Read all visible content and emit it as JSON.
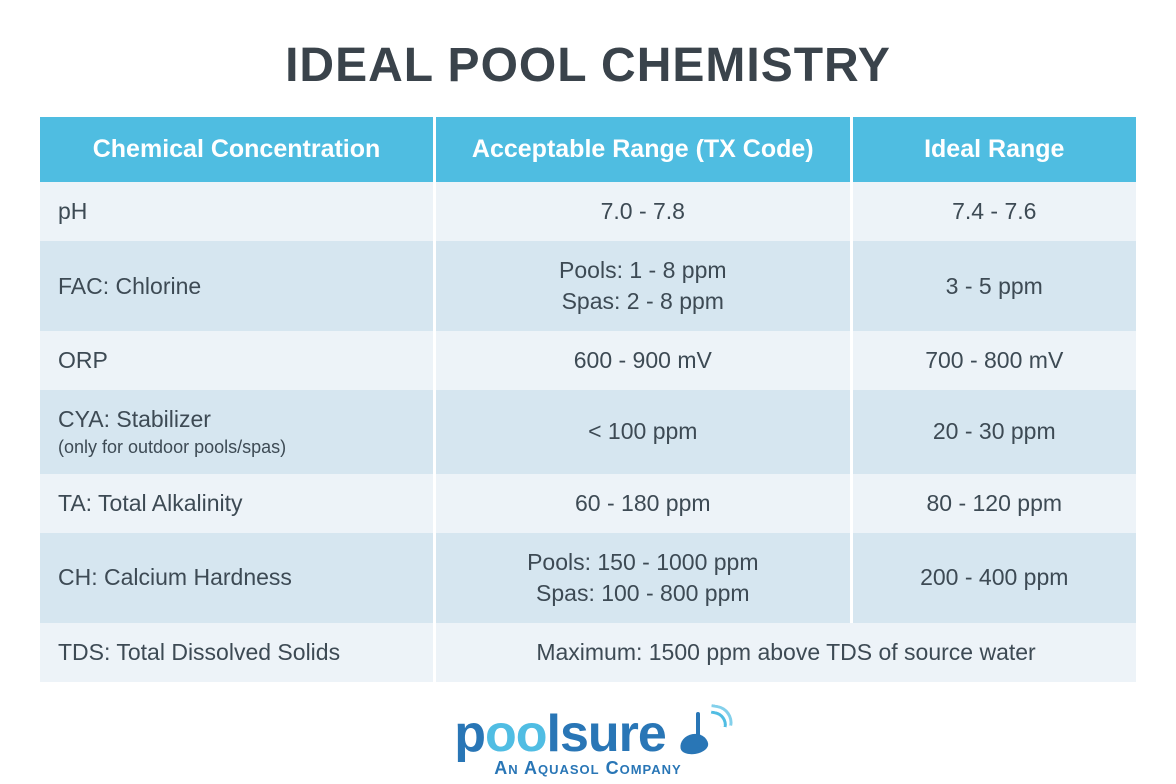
{
  "title": "IDEAL POOL CHEMISTRY",
  "colors": {
    "header_bg": "#4fbde1",
    "row_light": "#edf3f8",
    "row_dark": "#d6e6f0",
    "text": "#3d4a54",
    "logo_primary": "#2976b6",
    "logo_accent": "#50bde3"
  },
  "table": {
    "col_widths": [
      "36%",
      "38%",
      "26%"
    ],
    "headers": [
      "Chemical Concentration",
      "Acceptable Range (TX Code)",
      "Ideal Range"
    ],
    "rows": [
      {
        "label": "pH",
        "sublabel": "",
        "acceptable": "7.0 - 7.8",
        "ideal": "7.4 - 7.6",
        "span": false
      },
      {
        "label": "FAC: Chlorine",
        "sublabel": "",
        "acceptable": "Pools: 1 - 8 ppm\nSpas:  2 - 8 ppm",
        "ideal": "3 - 5 ppm",
        "span": false
      },
      {
        "label": "ORP",
        "sublabel": "",
        "acceptable": "600 - 900 mV",
        "ideal": "700 - 800 mV",
        "span": false
      },
      {
        "label": "CYA: Stabilizer",
        "sublabel": "(only for outdoor pools/spas)",
        "acceptable": "< 100 ppm",
        "ideal": "20 - 30 ppm",
        "span": false
      },
      {
        "label": "TA: Total Alkalinity",
        "sublabel": "",
        "acceptable": "60 - 180 ppm",
        "ideal": "80 - 120 ppm",
        "span": false
      },
      {
        "label": "CH: Calcium Hardness",
        "sublabel": "",
        "acceptable": "Pools: 150 - 1000 ppm\nSpas: 100 - 800 ppm",
        "ideal": "200 - 400 ppm",
        "span": false
      },
      {
        "label": "TDS: Total Dissolved Solids",
        "sublabel": "",
        "acceptable": "Maximum: 1500 ppm above TDS of source water",
        "ideal": "",
        "span": true
      }
    ]
  },
  "logo": {
    "brand_p": "p",
    "brand_oo": "oo",
    "brand_lsure": "lsure",
    "tagline": "An Aquasol Company"
  }
}
